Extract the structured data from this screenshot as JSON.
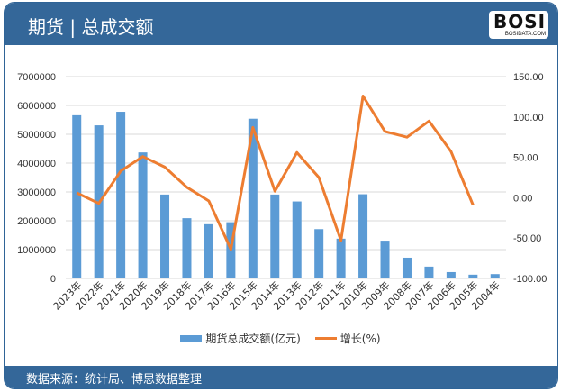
{
  "header": {
    "title": "期货 | 总成交额",
    "logo_text": "BOSI",
    "logo_subtext": "BOSIDATA.COM"
  },
  "footer": {
    "source": "数据来源：统计局、博思数据整理"
  },
  "colors": {
    "bar": "#5b9bd5",
    "line": "#ed7d31",
    "header": "#346799"
  },
  "chart_data": {
    "type": "bar+line",
    "categories": [
      "2023年",
      "2022年",
      "2021年",
      "2020年",
      "2019年",
      "2018年",
      "2017年",
      "2016年",
      "2015年",
      "2014年",
      "2013年",
      "2012年",
      "2011年",
      "2010年",
      "2009年",
      "2008年",
      "2007年",
      "2006年",
      "2005年",
      "2004年"
    ],
    "series": [
      {
        "name": "期货总成交额(亿元)",
        "type": "bar",
        "axis": "left",
        "values": [
          5660000,
          5310000,
          5780000,
          4370000,
          2910000,
          2090000,
          1880000,
          1950000,
          5540000,
          2910000,
          2670000,
          1710000,
          1380000,
          2920000,
          1310000,
          720000,
          410000,
          220000,
          130000,
          150000
        ]
      },
      {
        "name": "增长(%)",
        "type": "line",
        "axis": "right",
        "values": [
          6,
          -7,
          33,
          51,
          38,
          13,
          -4,
          -64,
          87,
          8,
          56,
          25,
          -53,
          126,
          82,
          75,
          95,
          57,
          -9,
          null
        ]
      }
    ],
    "left_axis": {
      "min": 0,
      "max": 7000000,
      "step": 1000000,
      "ticks": [
        "0",
        "1000000",
        "2000000",
        "3000000",
        "4000000",
        "5000000",
        "6000000",
        "7000000"
      ]
    },
    "right_axis": {
      "min": -100,
      "max": 150,
      "step": 50,
      "ticks": [
        "-100.00",
        "-50.00",
        "0.00",
        "50.00",
        "100.00",
        "150.00"
      ]
    },
    "grid": true,
    "legend": "bottom"
  }
}
